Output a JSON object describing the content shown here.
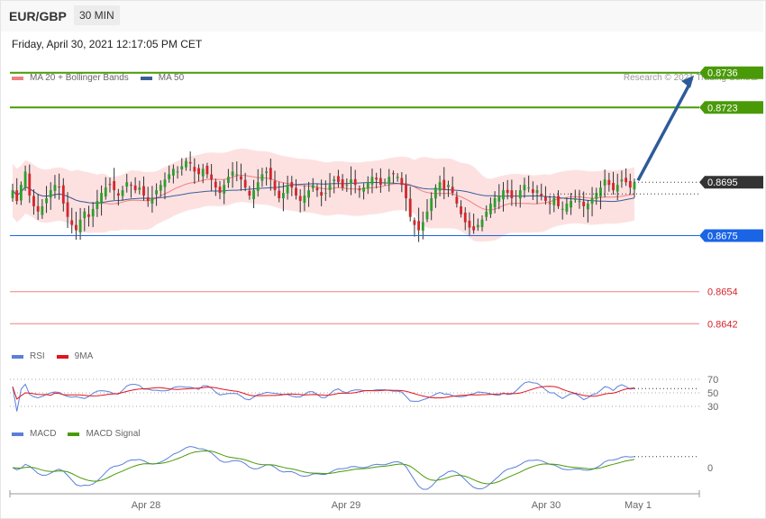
{
  "header": {
    "pair": "EUR/GBP",
    "timeframe": "30 MIN",
    "datetime": "Friday, April 30, 2021 12:17:05 PM CET",
    "credit": "Research © 2021 Trading Central"
  },
  "colors": {
    "up": "#2e9e2e",
    "down": "#d3262c",
    "band_fill": "#fddcdc",
    "ma20": "#f08080",
    "ma50": "#3a5f99",
    "resistance": "#4a9a08",
    "support": "#1a64e6",
    "target_low": "#f08080",
    "current": "#333333",
    "arrow": "#2d5b9a",
    "rsi": "#5b7fd9",
    "rsi_ma": "#e0141e",
    "macd": "#5b7fd9",
    "macd_signal": "#4a9a08"
  },
  "chart_data": [
    {
      "type": "candlestick",
      "legend": [
        {
          "name": "MA 20 + Bollinger Bands",
          "color": "#f08080"
        },
        {
          "name": "MA 50",
          "color": "#3a5f99"
        }
      ],
      "x_ticks": [
        "Apr 28",
        "Apr 29",
        "Apr 30",
        "May 1"
      ],
      "ylim": [
        0.8635,
        0.8743
      ],
      "current_price": 0.8695,
      "levels": [
        {
          "value": 0.8736,
          "label": "0.8736",
          "kind": "resistance"
        },
        {
          "value": 0.8723,
          "label": "0.8723",
          "kind": "resistance"
        },
        {
          "value": 0.8695,
          "label": "0.8695",
          "kind": "current"
        },
        {
          "value": 0.8675,
          "label": "0.8675",
          "kind": "support"
        },
        {
          "value": 0.8654,
          "label": "0.8654",
          "kind": "target_low"
        },
        {
          "value": 0.8642,
          "label": "0.8642",
          "kind": "target_low"
        }
      ],
      "forecast_arrow": {
        "from": 0.8695,
        "to": 0.8736
      },
      "closes": [
        0.8692,
        0.8688,
        0.8694,
        0.8699,
        0.869,
        0.8686,
        0.8684,
        0.8686,
        0.8689,
        0.8692,
        0.8694,
        0.8693,
        0.8687,
        0.8682,
        0.8679,
        0.8677,
        0.8681,
        0.8684,
        0.8682,
        0.8685,
        0.8688,
        0.8691,
        0.8693,
        0.8694,
        0.8692,
        0.869,
        0.8692,
        0.8695,
        0.8694,
        0.8692,
        0.8693,
        0.869,
        0.8688,
        0.8689,
        0.8692,
        0.8694,
        0.8696,
        0.8698,
        0.87,
        0.8699,
        0.8701,
        0.8703,
        0.8702,
        0.8699,
        0.8698,
        0.87,
        0.8698,
        0.8696,
        0.8693,
        0.8691,
        0.8694,
        0.8697,
        0.8699,
        0.8698,
        0.8696,
        0.8693,
        0.869,
        0.8692,
        0.8695,
        0.8698,
        0.8699,
        0.8696,
        0.8692,
        0.8689,
        0.8691,
        0.8694,
        0.8693,
        0.869,
        0.8688,
        0.869,
        0.8692,
        0.8694,
        0.8692,
        0.869,
        0.8691,
        0.8694,
        0.8696,
        0.8695,
        0.8693,
        0.8694,
        0.8696,
        0.8694,
        0.8692,
        0.8693,
        0.8695,
        0.8697,
        0.8696,
        0.8694,
        0.8695,
        0.8697,
        0.8698,
        0.8697,
        0.8694,
        0.8689,
        0.8682,
        0.8679,
        0.8677,
        0.868,
        0.8684,
        0.8689,
        0.8693,
        0.8695,
        0.8692,
        0.8694,
        0.8691,
        0.8687,
        0.8683,
        0.868,
        0.8678,
        0.8677,
        0.8679,
        0.8681,
        0.8684,
        0.8687,
        0.8689,
        0.869,
        0.8692,
        0.8691,
        0.8689,
        0.869,
        0.8692,
        0.8694,
        0.8693,
        0.8691,
        0.8692,
        0.869,
        0.8688,
        0.8687,
        0.8689,
        0.8686,
        0.8685,
        0.8687,
        0.8688,
        0.8689,
        0.8688,
        0.8686,
        0.8687,
        0.8689,
        0.8691,
        0.8693,
        0.8696,
        0.8694,
        0.8692,
        0.8694,
        0.8696,
        0.8695,
        0.8693,
        0.8695
      ]
    },
    {
      "type": "line",
      "legend": [
        {
          "name": "RSI",
          "color": "#5b7fd9"
        },
        {
          "name": "9MA",
          "color": "#e0141e"
        }
      ],
      "ylim": [
        10,
        90
      ],
      "levels": [
        70,
        50,
        30
      ],
      "level_labels": [
        "70",
        "50",
        "30"
      ]
    },
    {
      "type": "line",
      "legend": [
        {
          "name": "MACD",
          "color": "#5b7fd9"
        },
        {
          "name": "MACD Signal",
          "color": "#4a9a08"
        }
      ],
      "zero_label": "0"
    }
  ]
}
